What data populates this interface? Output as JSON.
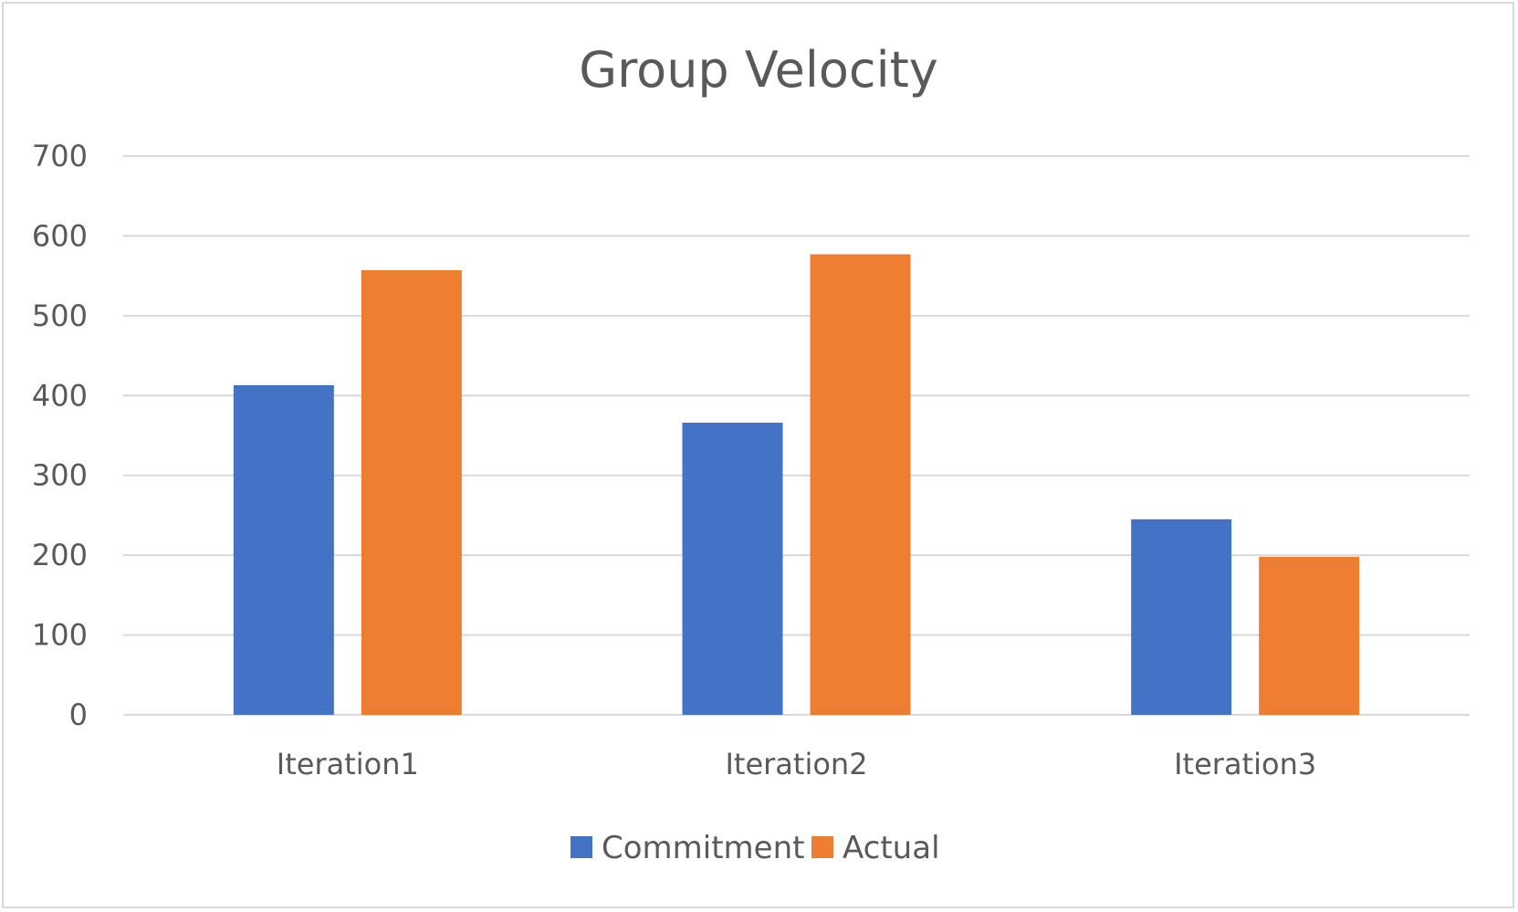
{
  "chart_data": {
    "type": "bar",
    "title": "Group Velocity",
    "xlabel": "",
    "ylabel": "",
    "categories": [
      "Iteration1",
      "Iteration2",
      "Iteration3"
    ],
    "series": [
      {
        "name": "Commitment",
        "values": [
          413,
          366,
          245
        ],
        "color": "#4472c4"
      },
      {
        "name": "Actual",
        "values": [
          557,
          577,
          198
        ],
        "color": "#ed7d31"
      }
    ],
    "ylim": [
      0,
      700
    ],
    "yticks": [
      "0",
      "100",
      "200",
      "300",
      "400",
      "500",
      "600",
      "700"
    ],
    "grid": true,
    "legend": "bottom"
  }
}
